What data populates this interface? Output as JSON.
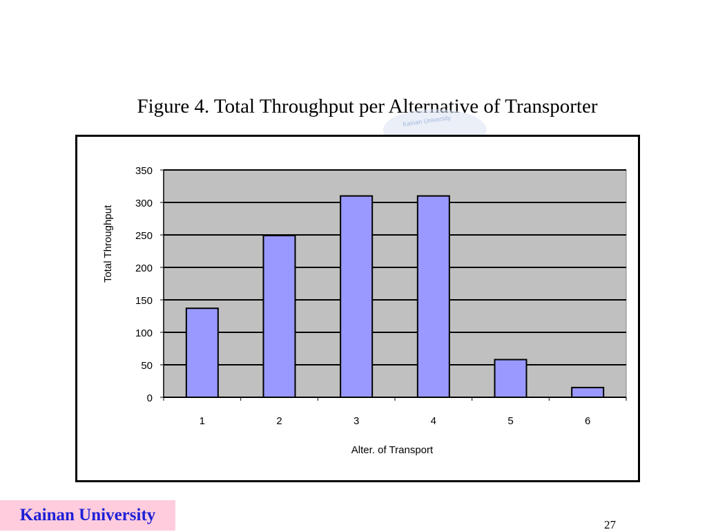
{
  "slide": {
    "page_number": "27",
    "footer_label": "Kainan University"
  },
  "chart_data": {
    "type": "bar",
    "title": "Figure 4. Total Throughput per Alternative of Transporter",
    "xlabel": "Alter. of Transport",
    "ylabel": "Total Throughput",
    "categories": [
      "1",
      "2",
      "3",
      "4",
      "5",
      "6"
    ],
    "values": [
      137,
      249,
      310,
      310,
      58,
      15
    ],
    "ylim": [
      0,
      350
    ],
    "yticks": [
      0,
      50,
      100,
      150,
      200,
      250,
      300,
      350
    ],
    "grid": true,
    "legend": "none",
    "colors": {
      "bar_fill": "#9999ff",
      "bar_stroke": "#000000",
      "plot_background": "#c0c0c0",
      "gridline": "#000000"
    }
  }
}
